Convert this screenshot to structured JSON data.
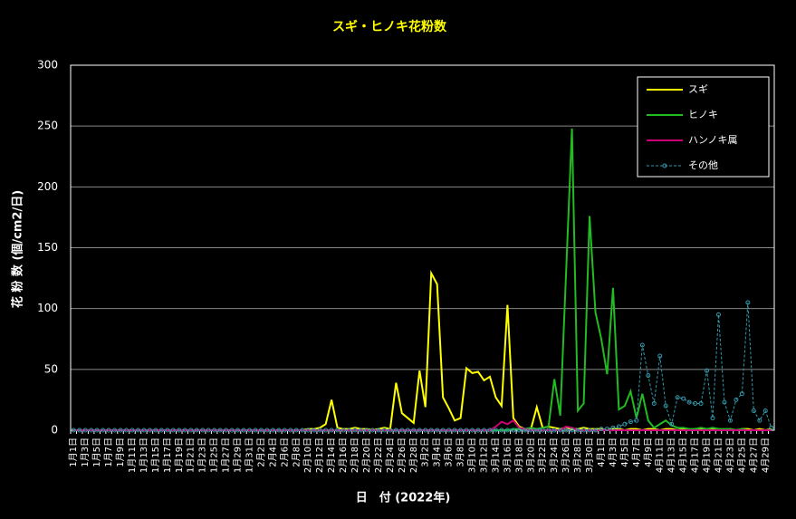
{
  "chart_data": {
    "type": "line",
    "title": "スギ・ヒノキ花粉数",
    "y_label": "花 粉 数 (個/cm2/日)",
    "x_label": "日　付 (2022年)",
    "categories": [
      "1月1日",
      null,
      "1月3日",
      null,
      "1月5日",
      null,
      "1月7日",
      null,
      "1月9日",
      null,
      "1月11日",
      null,
      "1月13日",
      null,
      "1月15日",
      null,
      "1月17日",
      null,
      "1月19日",
      null,
      "1月21日",
      null,
      "1月23日",
      null,
      "1月25日",
      null,
      "1月27日",
      null,
      "1月29日",
      null,
      "1月31日",
      null,
      "2月2日",
      null,
      "2月4日",
      null,
      "2月6日",
      null,
      "2月8日",
      null,
      "2月10日",
      null,
      "2月12日",
      null,
      "2月14日",
      null,
      "2月16日",
      null,
      "2月18日",
      null,
      "2月20日",
      null,
      "2月22日",
      null,
      "2月24日",
      null,
      "2月26日",
      null,
      "2月28日",
      null,
      "3月2日",
      null,
      "3月4日",
      null,
      "3月6日",
      null,
      "3月8日",
      null,
      "3月10日",
      null,
      "3月12日",
      null,
      "3月14日",
      null,
      "3月16日",
      null,
      "3月18日",
      null,
      "3月20日",
      null,
      "3月22日",
      null,
      "3月24日",
      null,
      "3月26日",
      null,
      "3月28日",
      null,
      "3月30日",
      null,
      "4月1日",
      null,
      "4月3日",
      null,
      "4月5日",
      null,
      "4月7日",
      null,
      "4月9日",
      null,
      "4月11日",
      null,
      "4月13日",
      null,
      "4月15日",
      null,
      "4月17日",
      null,
      "4月19日",
      null,
      "4月21日",
      null,
      "4月23日",
      null,
      "4月25日",
      null,
      "4月27日",
      null,
      "4月29日",
      null
    ],
    "series": [
      {
        "name": "スギ",
        "color": "#ffff00",
        "dashed": false,
        "markers": false,
        "values": [
          0,
          0,
          0,
          0,
          0,
          0,
          0,
          0,
          0,
          0,
          0,
          0,
          0,
          0,
          0,
          0,
          0,
          0,
          0,
          0,
          0,
          0,
          0,
          0,
          0,
          0,
          0,
          0,
          0,
          0,
          0,
          0,
          0,
          0,
          0,
          0,
          0,
          0,
          0,
          0,
          1,
          1,
          2,
          5,
          25,
          2,
          1,
          1,
          2,
          1,
          1,
          0,
          1,
          2,
          1,
          39,
          14,
          10,
          6,
          49,
          19,
          129,
          120,
          27,
          18,
          8,
          10,
          51,
          47,
          48,
          41,
          44,
          27,
          20,
          103,
          10,
          3,
          1,
          1,
          19,
          2,
          3,
          2,
          1,
          2,
          1,
          1,
          2,
          1,
          1,
          1,
          0,
          1,
          1,
          0,
          1,
          1,
          0,
          1,
          1,
          0,
          1,
          1,
          0,
          1,
          0,
          1,
          1,
          0,
          1,
          1,
          0,
          1,
          0,
          1,
          1,
          0,
          1,
          0,
          1
        ]
      },
      {
        "name": "ヒノキ",
        "color": "#22bb22",
        "dashed": false,
        "markers": false,
        "values": [
          0,
          0,
          0,
          0,
          0,
          0,
          0,
          0,
          0,
          0,
          0,
          0,
          0,
          0,
          0,
          0,
          0,
          0,
          0,
          0,
          0,
          0,
          0,
          0,
          0,
          0,
          0,
          0,
          0,
          0,
          0,
          0,
          0,
          0,
          0,
          0,
          0,
          0,
          0,
          0,
          0,
          0,
          0,
          0,
          0,
          0,
          0,
          0,
          0,
          0,
          0,
          0,
          0,
          0,
          0,
          0,
          0,
          0,
          0,
          0,
          0,
          0,
          0,
          0,
          0,
          0,
          0,
          0,
          0,
          0,
          0,
          0,
          0,
          0,
          0,
          1,
          1,
          1,
          2,
          1,
          2,
          3,
          42,
          12,
          130,
          248,
          16,
          22,
          176,
          97,
          75,
          46,
          117,
          17,
          20,
          32,
          10,
          30,
          8,
          2,
          5,
          8,
          4,
          2,
          2,
          1,
          1,
          2,
          1,
          2,
          1,
          1,
          1,
          0,
          1,
          0,
          0,
          0,
          0,
          0
        ]
      },
      {
        "name": "ハンノキ属",
        "color": "#cc0077",
        "dashed": false,
        "markers": false,
        "values": [
          0,
          0,
          0,
          0,
          0,
          0,
          0,
          0,
          0,
          0,
          0,
          0,
          0,
          0,
          0,
          0,
          0,
          0,
          0,
          0,
          0,
          0,
          0,
          0,
          0,
          0,
          0,
          0,
          0,
          0,
          0,
          0,
          0,
          0,
          0,
          0,
          0,
          0,
          0,
          0,
          0,
          0,
          0,
          0,
          0,
          0,
          0,
          0,
          0,
          0,
          0,
          0,
          0,
          0,
          0,
          0,
          0,
          0,
          0,
          0,
          0,
          0,
          0,
          0,
          0,
          0,
          0,
          0,
          0,
          0,
          0,
          0,
          3,
          7,
          5,
          8,
          2,
          1,
          0,
          0,
          0,
          0,
          0,
          0,
          3,
          2,
          0,
          0,
          0,
          0,
          0,
          0,
          0,
          0,
          0,
          0,
          0,
          0,
          0,
          0,
          0,
          0,
          0,
          0,
          0,
          0,
          0,
          0,
          0,
          0,
          0,
          0,
          0,
          0,
          0,
          0,
          0,
          0,
          0,
          0
        ]
      },
      {
        "name": "その他",
        "color": "#3399aa",
        "dashed": true,
        "markers": true,
        "values": [
          0,
          0,
          0,
          0,
          0,
          0,
          0,
          0,
          0,
          0,
          0,
          0,
          0,
          0,
          0,
          0,
          0,
          0,
          0,
          0,
          0,
          0,
          0,
          0,
          0,
          0,
          0,
          0,
          0,
          0,
          0,
          0,
          0,
          0,
          0,
          0,
          0,
          0,
          0,
          0,
          0,
          0,
          0,
          0,
          0,
          0,
          0,
          0,
          0,
          0,
          0,
          0,
          0,
          0,
          0,
          0,
          0,
          0,
          0,
          0,
          0,
          0,
          0,
          0,
          0,
          0,
          0,
          0,
          0,
          0,
          0,
          0,
          0,
          0,
          0,
          0,
          0,
          0,
          0,
          0,
          0,
          0,
          0,
          0,
          0,
          0,
          0,
          0,
          0,
          0,
          1,
          1,
          2,
          3,
          5,
          7,
          8,
          70,
          45,
          22,
          61,
          20,
          5,
          27,
          26,
          23,
          22,
          22,
          49,
          10,
          95,
          23,
          8,
          25,
          30,
          105,
          16,
          8,
          16,
          2
        ]
      }
    ],
    "ylim": [
      0,
      300
    ],
    "yticks": [
      0,
      50,
      100,
      150,
      200,
      250,
      300
    ],
    "grid": true,
    "legend": "top-right"
  }
}
